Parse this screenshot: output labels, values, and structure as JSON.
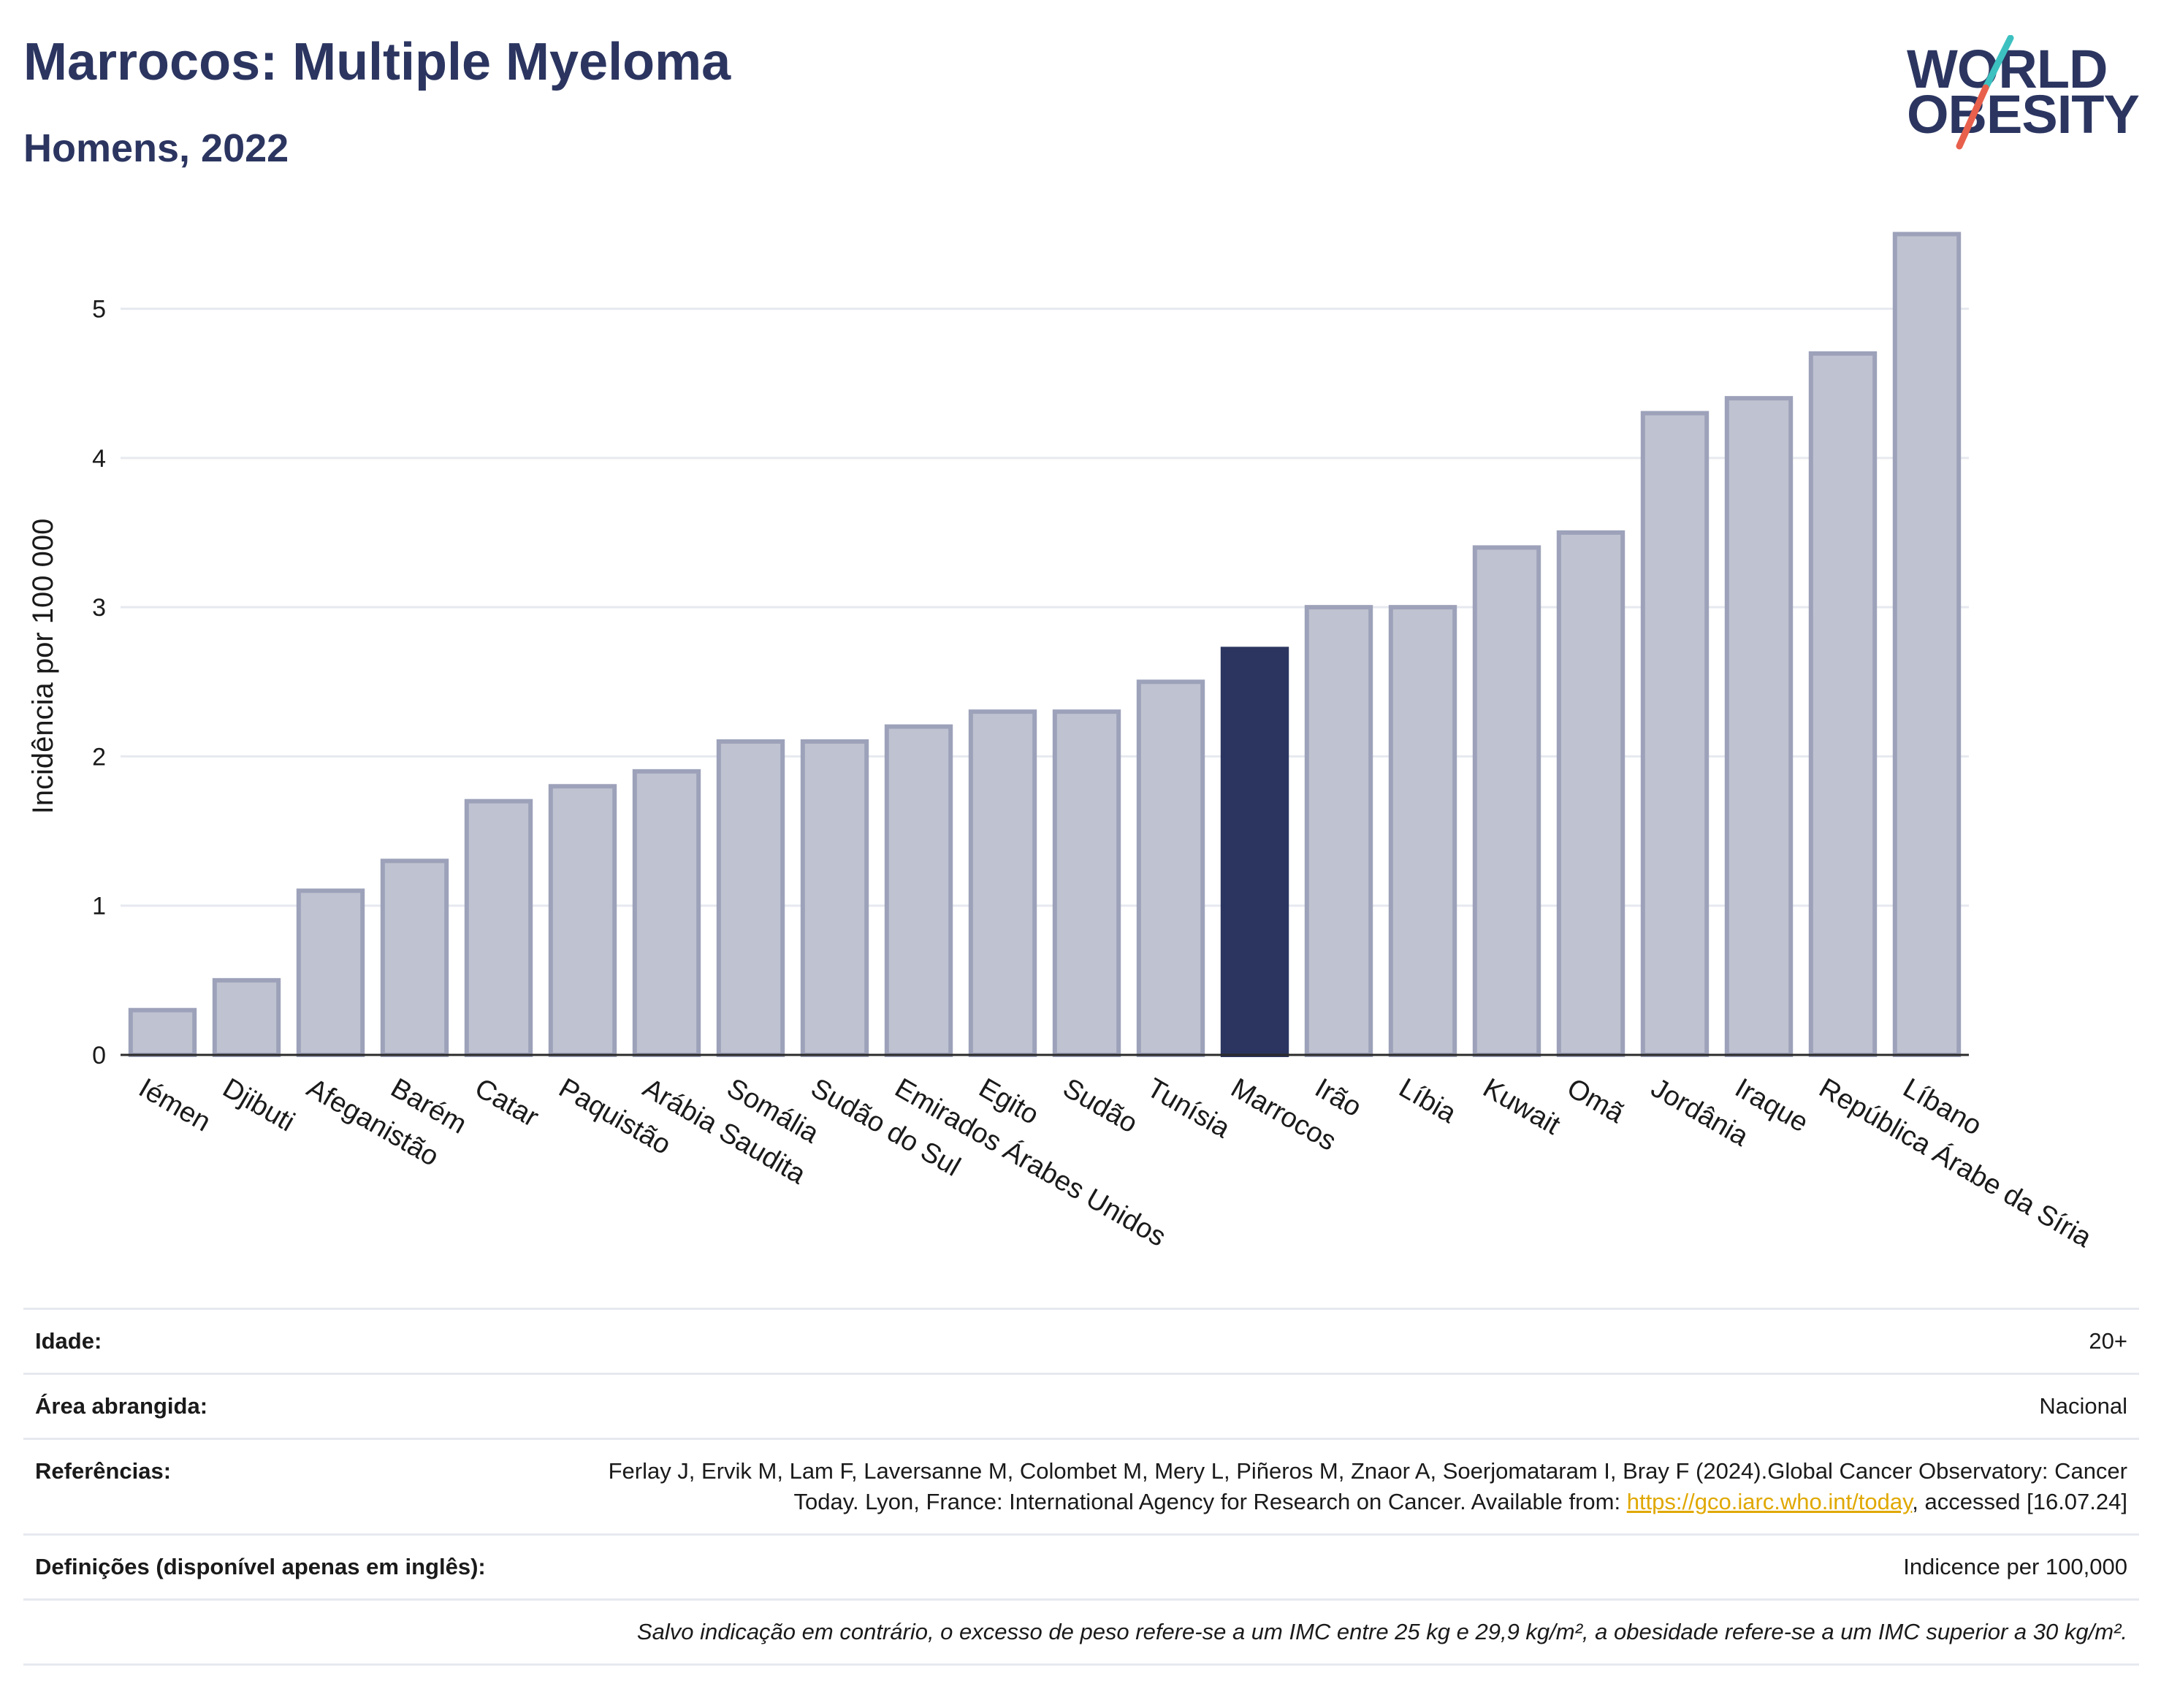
{
  "header": {
    "title": "Marrocos: Multiple Myeloma",
    "subtitle": "Homens, 2022"
  },
  "logo": {
    "line1": "WORLD",
    "line2": "OBESITY",
    "slash_colors": [
      "#3cc1c0",
      "#e8604c"
    ]
  },
  "chart_data": {
    "type": "bar",
    "title": "Marrocos: Multiple Myeloma",
    "subtitle": "Homens, 2022",
    "xlabel": "",
    "ylabel": "Incidência por 100 000",
    "ylim": [
      0,
      5.6
    ],
    "yticks": [
      0,
      1,
      2,
      3,
      4,
      5
    ],
    "grid": true,
    "categories": [
      "Iémen",
      "Djibuti",
      "Afeganistão",
      "Barém",
      "Catar",
      "Paquistão",
      "Arábia Saudita",
      "Somália",
      "Sudão do Sul",
      "Emirados Árabes Unidos",
      "Egito",
      "Sudão",
      "Tunísia",
      "Marrocos",
      "Irão",
      "Líbia",
      "Kuwait",
      "Omã",
      "Jordânia",
      "Iraque",
      "República Árabe da Síria",
      "Líbano"
    ],
    "values": [
      0.3,
      0.5,
      1.1,
      1.3,
      1.7,
      1.8,
      1.9,
      2.1,
      2.1,
      2.2,
      2.3,
      2.3,
      2.5,
      2.72,
      3.0,
      3.0,
      3.4,
      3.5,
      4.3,
      4.4,
      4.7,
      5.5
    ],
    "highlight": "Marrocos",
    "colors": {
      "bar": "#bfc2d0",
      "bar_border": "#9da2ba",
      "highlight": "#2b3560",
      "grid": "#e6e9ef",
      "axis": "#2b2b2b"
    }
  },
  "info": {
    "age_label": "Idade:",
    "age_value": "20+",
    "area_label": "Área abrangida:",
    "area_value": "Nacional",
    "ref_label": "Referências:",
    "ref_text": "Ferlay J, Ervik M, Lam F, Laversanne M, Colombet M, Mery L, Piñeros M, Znaor A, Soerjomataram I, Bray F (2024).Global Cancer Observatory: Cancer Today. Lyon, France: International Agency for Research on Cancer. Available from: ",
    "ref_link": "https://gco.iarc.who.int/today",
    "ref_suffix": ", accessed [16.07.24]",
    "def_label": "Definições (disponível apenas em inglês):",
    "def_value": "Indicence per 100,000",
    "note": "Salvo indicação em contrário, o excesso de peso refere-se a um IMC entre 25 kg e 29,9 kg/m², a obesidade refere-se a um IMC superior a 30 kg/m²."
  }
}
